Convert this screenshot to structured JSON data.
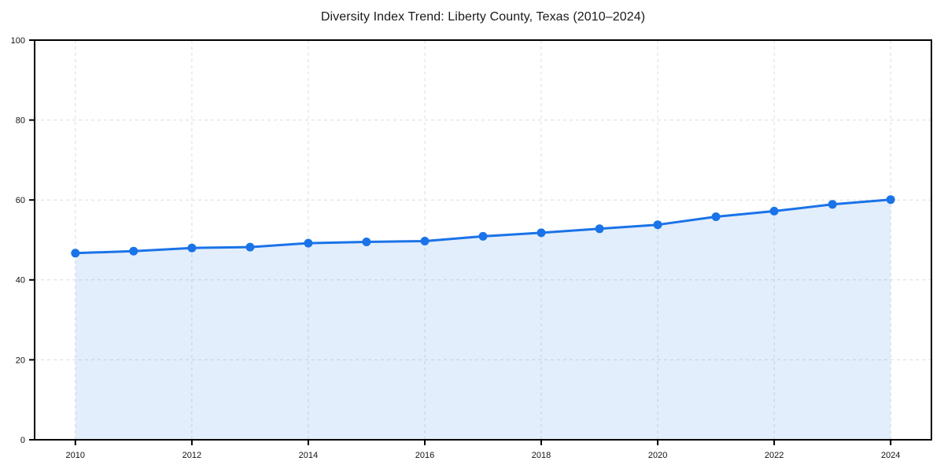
{
  "chart_data": {
    "type": "line",
    "title": "Diversity Index Trend: Liberty County, Texas (2010–2024)",
    "x": [
      2010,
      2011,
      2012,
      2013,
      2014,
      2015,
      2016,
      2017,
      2018,
      2019,
      2020,
      2021,
      2022,
      2023,
      2024
    ],
    "values": [
      46.7,
      47.2,
      48.0,
      48.2,
      49.2,
      49.5,
      49.7,
      50.9,
      51.8,
      52.8,
      53.8,
      55.8,
      57.2,
      58.9,
      60.1
    ],
    "xlabel": "",
    "ylabel": "",
    "xlim": [
      2009.3,
      2024.7
    ],
    "ylim": [
      0,
      100
    ],
    "xticks": [
      2010,
      2012,
      2014,
      2016,
      2018,
      2020,
      2022,
      2024
    ],
    "yticks": [
      0,
      20,
      40,
      60,
      80,
      100
    ],
    "grid": true,
    "grid_style": "dashed",
    "legend": false,
    "area_fill": true,
    "marker": "circle",
    "colors": {
      "line": "#1a73e8",
      "marker": "#1a73e8",
      "fill": "rgba(26,115,232,0.12)",
      "grid": "#dcdcdc",
      "axis": "#000000",
      "tick_text": "#111111",
      "title_text": "#1a1a1a",
      "background": "#ffffff"
    }
  }
}
